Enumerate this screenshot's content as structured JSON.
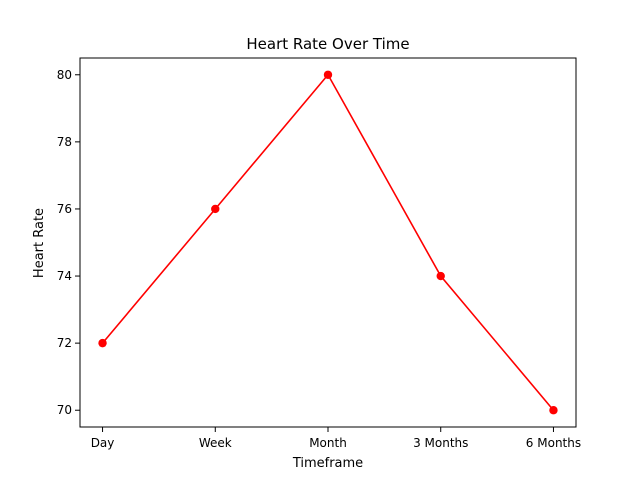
{
  "chart_data": {
    "type": "line",
    "title": "Heart Rate Over Time",
    "xlabel": "Timeframe",
    "ylabel": "Heart Rate",
    "categories": [
      "Day",
      "Week",
      "Month",
      "3 Months",
      "6 Months"
    ],
    "series": [
      {
        "values": [
          72,
          76,
          80,
          74,
          70
        ],
        "color": "#ff0000",
        "marker": "circle"
      }
    ],
    "ylim": [
      69.5,
      80.5
    ],
    "yticks": [
      70,
      72,
      74,
      76,
      78,
      80
    ],
    "grid": false,
    "legend": "none"
  }
}
